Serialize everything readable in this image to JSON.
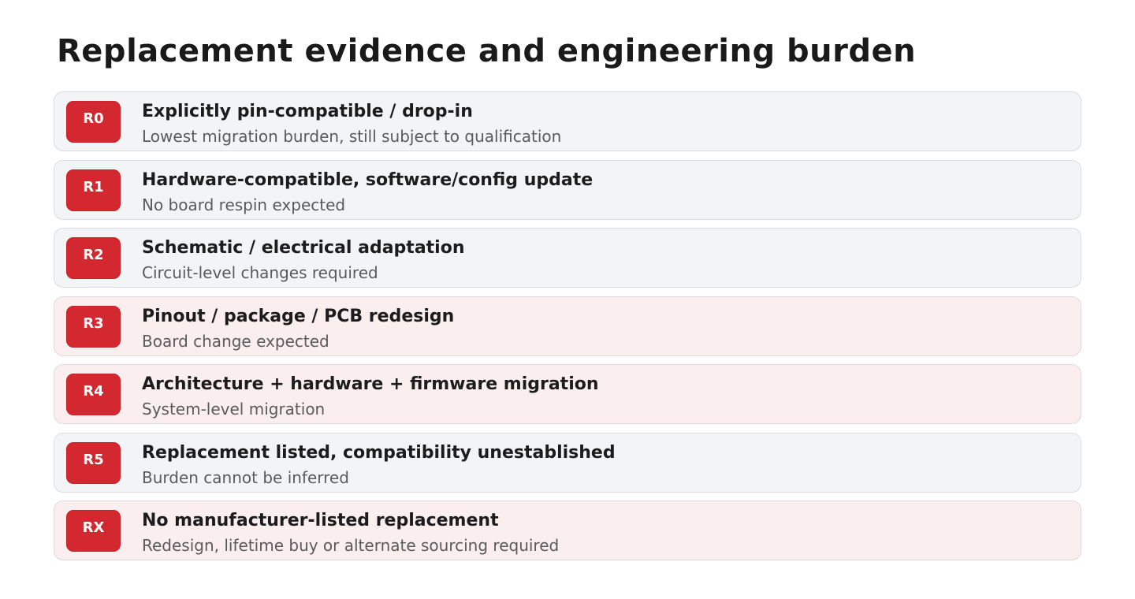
{
  "title": "Replacement evidence and engineering burden",
  "tiers": [
    {
      "code": "R0",
      "title": "Explicitly pin-compatible / drop-in",
      "description": "Lowest migration burden, still subject to qualification",
      "highlight": false
    },
    {
      "code": "R1",
      "title": "Hardware-compatible, software/config update",
      "description": "No board respin expected",
      "highlight": false
    },
    {
      "code": "R2",
      "title": "Schematic / electrical adaptation",
      "description": "Circuit-level changes required",
      "highlight": false
    },
    {
      "code": "R3",
      "title": "Pinout / package / PCB redesign",
      "description": "Board change expected",
      "highlight": true
    },
    {
      "code": "R4",
      "title": "Architecture + hardware + firmware migration",
      "description": "System-level migration",
      "highlight": true
    },
    {
      "code": "R5",
      "title": "Replacement listed, compatibility unestablished",
      "description": "Burden cannot be inferred",
      "highlight": false
    },
    {
      "code": "RX",
      "title": "No manufacturer-listed replacement",
      "description": "Redesign, lifetime buy or alternate sourcing required",
      "highlight": true
    }
  ],
  "colors": {
    "badge": "#d3282f",
    "row_default": "#f3f4f6",
    "row_highlight": "#fbeeee"
  }
}
